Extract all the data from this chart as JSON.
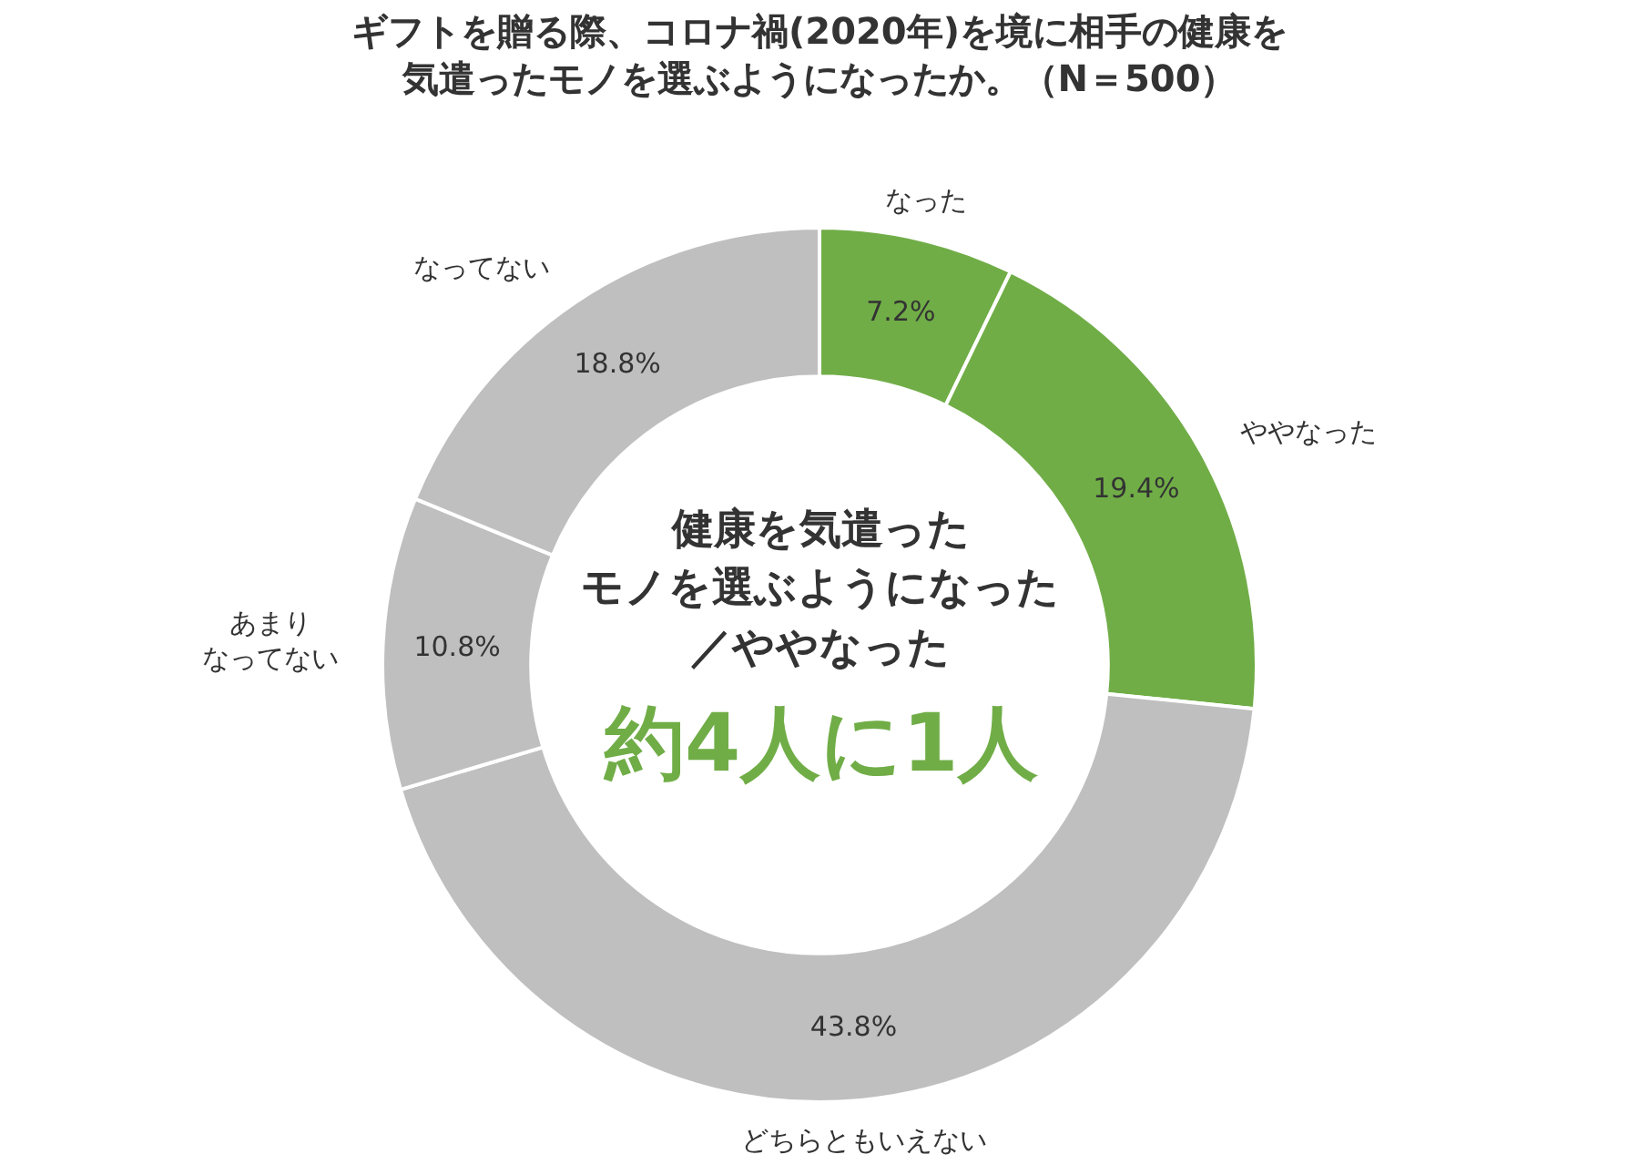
{
  "chart_data": {
    "type": "donut",
    "title": "ギフトを贈る際、コロナ禍(2020年)を境に相手の健康を気遣ったモノを選ぶようになったか。（N＝500）",
    "categories": [
      "なった",
      "ややなった",
      "どちらともいえない",
      "あまりなってない",
      "なってない"
    ],
    "values": [
      7.2,
      19.4,
      43.8,
      10.8,
      18.8
    ],
    "colors": [
      "#70ad47",
      "#70ad47",
      "#bfbfbf",
      "#bfbfbf",
      "#bfbfbf"
    ],
    "value_labels": [
      "7.2%",
      "19.4%",
      "43.8%",
      "10.8%",
      "18.8%"
    ],
    "annotations": [
      "健康を気遣った",
      "モノを選ぶようになった",
      "／ややなった",
      "約4人に1人"
    ],
    "legend": false
  }
}
